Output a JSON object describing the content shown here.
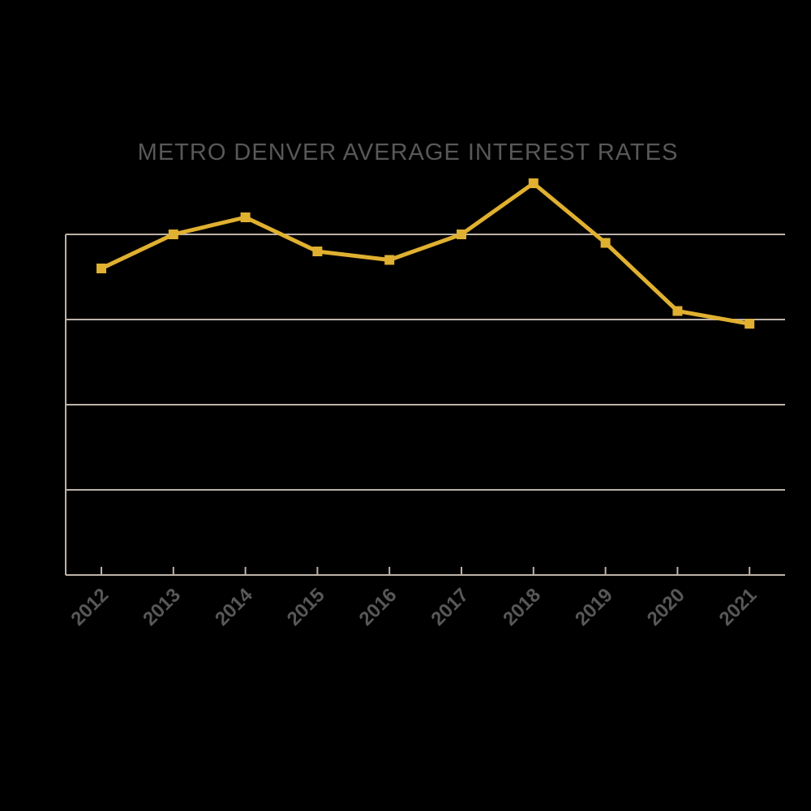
{
  "chart_data": {
    "type": "line",
    "title": "METRO DENVER AVERAGE INTEREST RATES",
    "xlabel": "",
    "ylabel": "",
    "categories": [
      "2012",
      "2013",
      "2014",
      "2015",
      "2016",
      "2017",
      "2018",
      "2019",
      "2020",
      "2021"
    ],
    "series": [
      {
        "values": [
          3.6,
          4.0,
          4.2,
          3.8,
          3.7,
          4.0,
          4.6,
          3.9,
          3.1,
          2.95
        ]
      }
    ],
    "ylim": [
      0,
      4.0
    ],
    "y_gridlines": [
      1,
      2,
      3,
      4
    ],
    "y_tick_labels_shown": false,
    "grid": true,
    "legend": "none",
    "colors": {
      "line": "#e0b030",
      "grid": "#bdb2a8",
      "title": "#58585a",
      "tick_label": "#58585a",
      "background": "#000000"
    }
  }
}
